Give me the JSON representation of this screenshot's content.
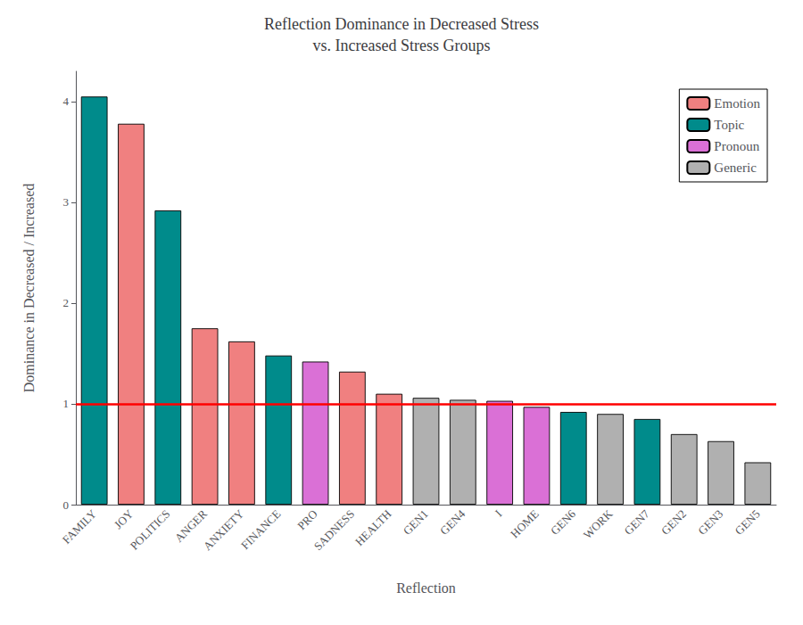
{
  "chart_data": {
    "type": "bar",
    "title": "Reflection Dominance in Decreased Stress\nvs. Increased Stress Groups",
    "xlabel": "Reflection",
    "ylabel": "Dominance in Decreased / Increased",
    "categories": [
      "FAMILY",
      "JOY",
      "POLITICS",
      "ANGER",
      "ANXIETY",
      "FINANCE",
      "PRO",
      "SADNESS",
      "HEALTH",
      "GEN1",
      "GEN4",
      "I",
      "HOME",
      "GEN6",
      "WORK",
      "GEN7",
      "GEN2",
      "GEN3",
      "GEN5"
    ],
    "series": [
      {
        "name": "Emotion",
        "color": "#f08080",
        "values": [
          null,
          3.78,
          null,
          1.75,
          1.62,
          null,
          null,
          1.32,
          1.1,
          null,
          null,
          null,
          null,
          null,
          null,
          null,
          null,
          null,
          null
        ]
      },
      {
        "name": "Topic",
        "color": "#008B8B",
        "values": [
          4.05,
          null,
          2.92,
          null,
          null,
          1.48,
          null,
          null,
          null,
          null,
          null,
          null,
          null,
          0.92,
          null,
          0.85,
          null,
          null,
          null
        ]
      },
      {
        "name": "Pronoun",
        "color": "#da70d6",
        "values": [
          null,
          null,
          null,
          null,
          null,
          null,
          1.42,
          null,
          null,
          null,
          null,
          1.03,
          0.97,
          null,
          null,
          null,
          null,
          null,
          null
        ]
      },
      {
        "name": "Generic",
        "color": "#b0b0b0",
        "values": [
          null,
          null,
          null,
          null,
          null,
          null,
          null,
          null,
          null,
          1.06,
          1.04,
          null,
          null,
          null,
          0.9,
          null,
          0.7,
          0.63,
          0.42
        ]
      }
    ],
    "hline": {
      "y": 1.0,
      "color": "red"
    },
    "ylim": [
      0,
      4.3
    ],
    "yticks": [
      0,
      1,
      2,
      3,
      4
    ],
    "legend": "upper right",
    "grid": false
  }
}
